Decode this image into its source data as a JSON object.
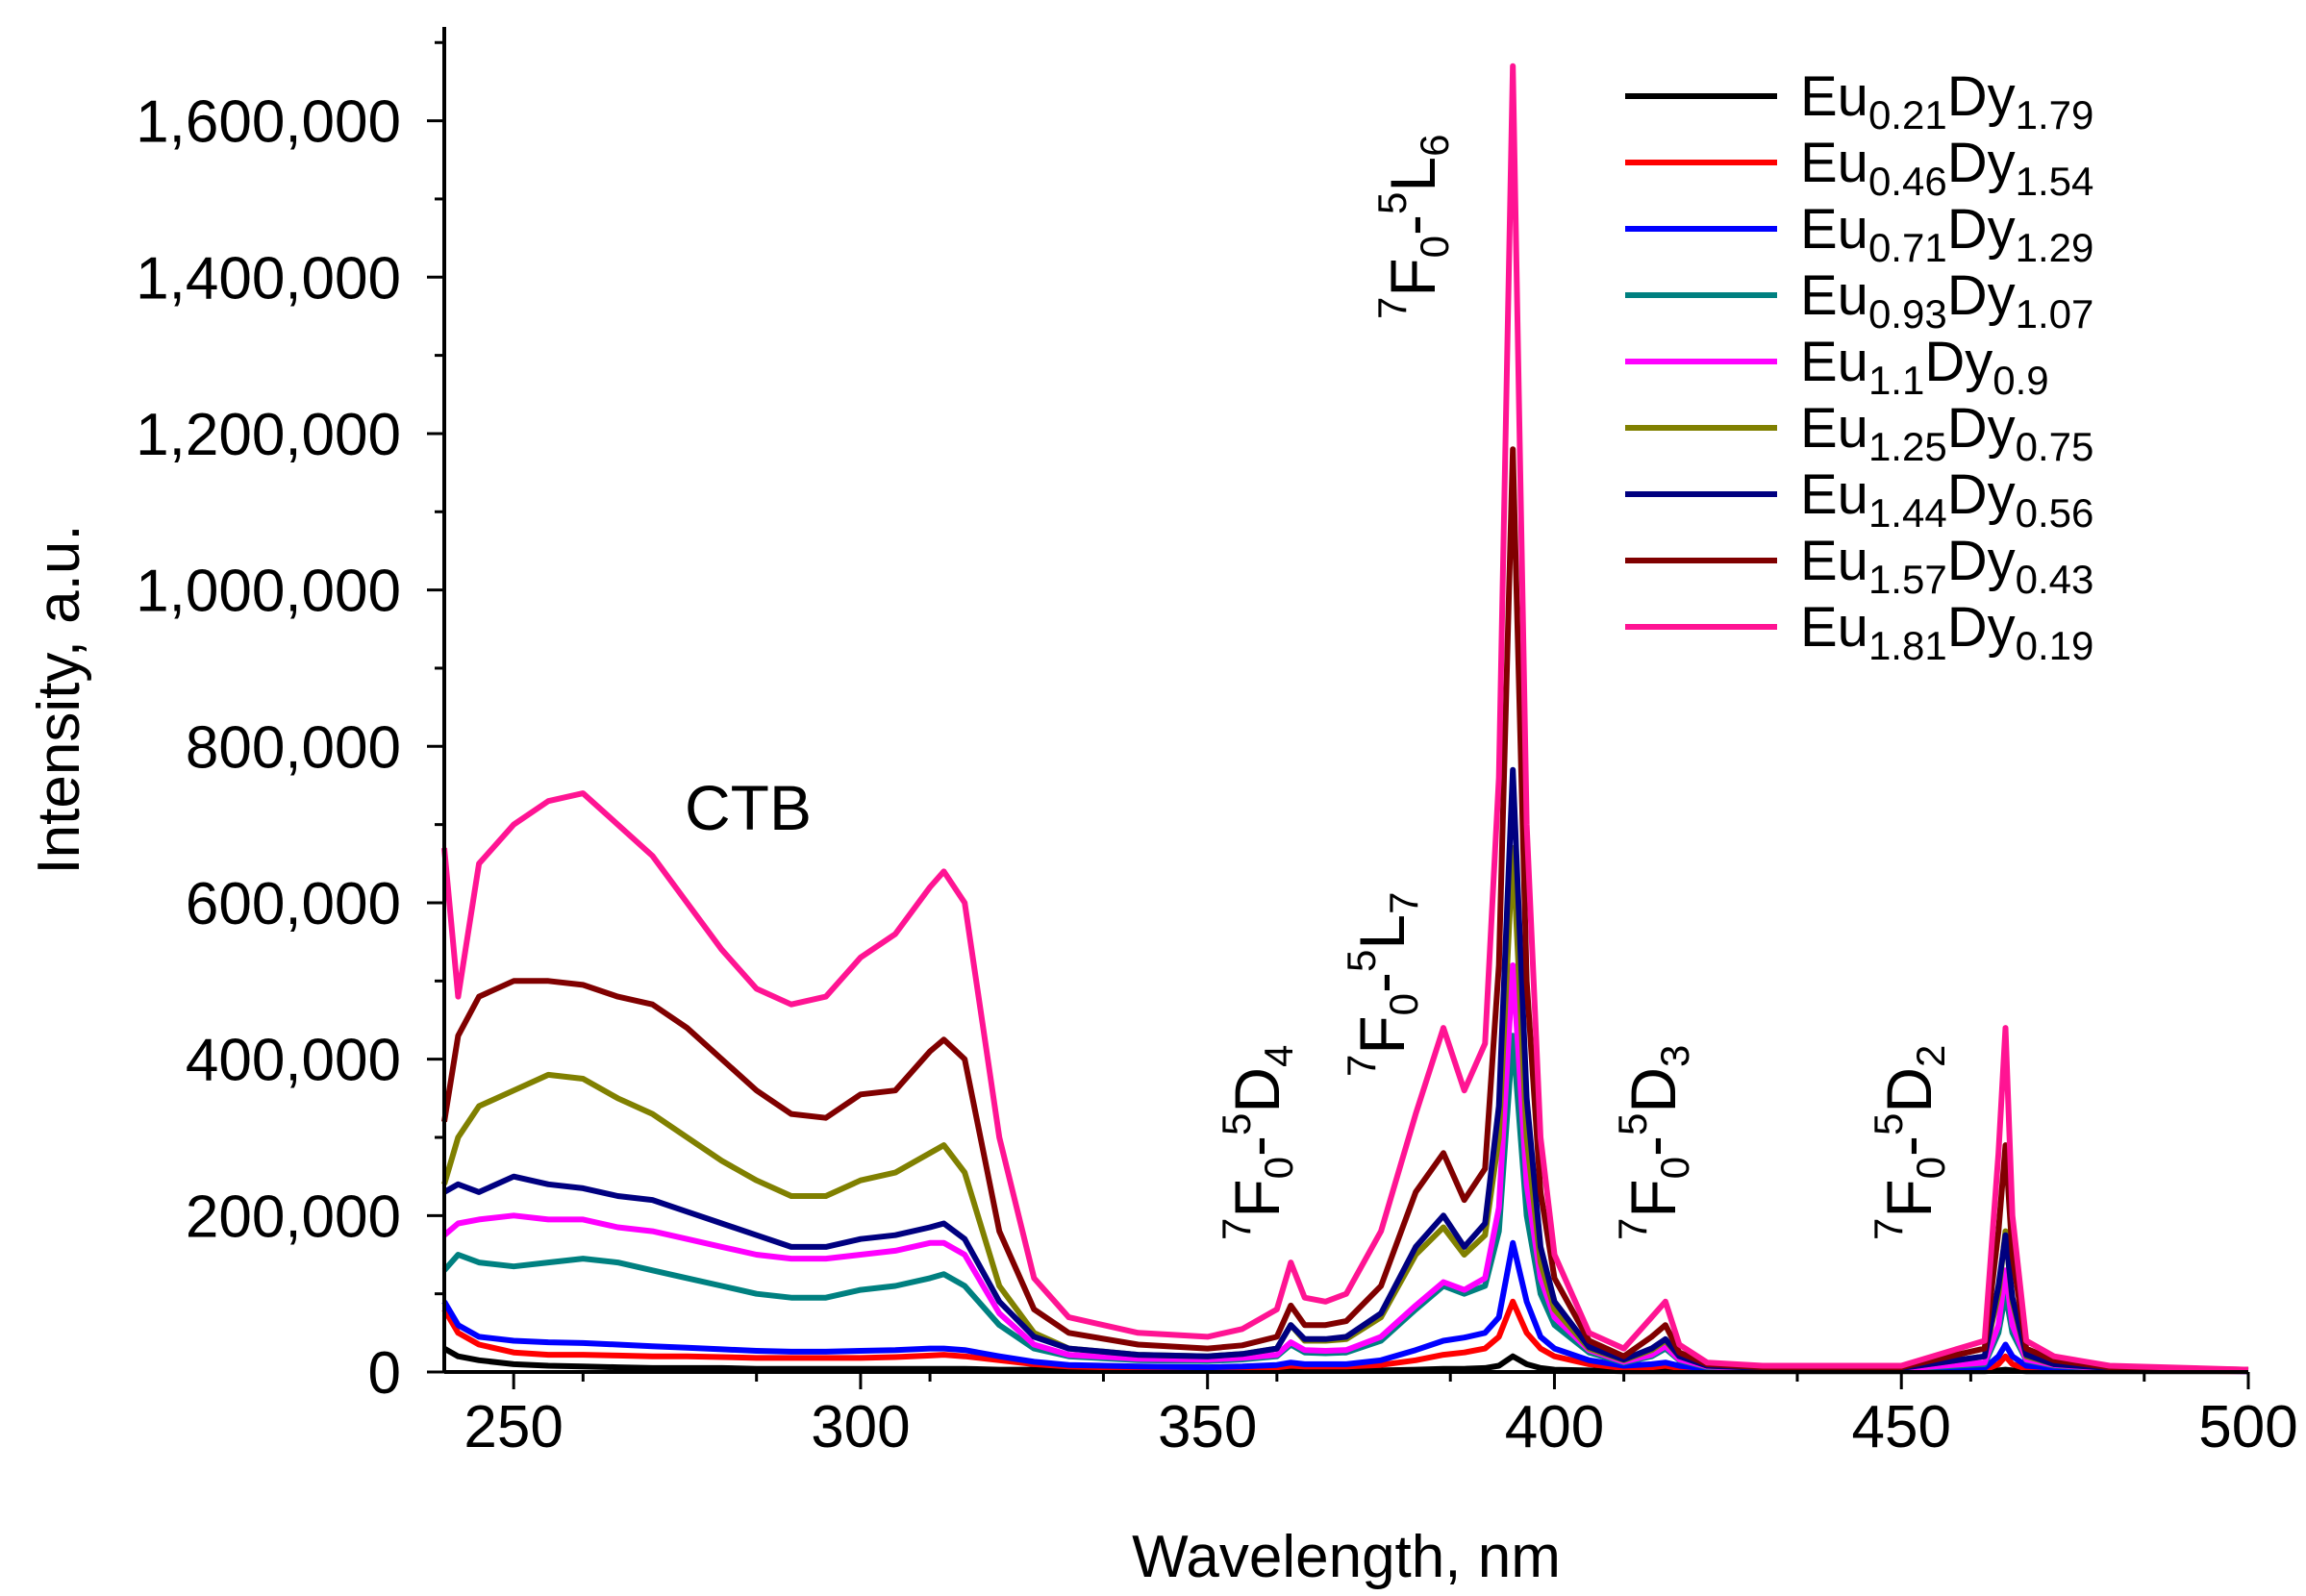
{
  "chart_data": {
    "type": "line",
    "title": "",
    "xlabel": "Wavelength, nm",
    "ylabel": "Intensity, a.u.",
    "xlim": [
      240,
      500
    ],
    "ylim": [
      0,
      1720000
    ],
    "xticks": [
      250,
      300,
      350,
      400,
      450,
      500
    ],
    "yticks": [
      0,
      200000,
      400000,
      600000,
      800000,
      1000000,
      1200000,
      1400000,
      1600000
    ],
    "xtick_labels": [
      "250",
      "300",
      "350",
      "400",
      "450",
      "500"
    ],
    "ytick_labels": [
      "0",
      "200,000",
      "400,000",
      "600,000",
      "800,000",
      "1,000,000",
      "1,200,000",
      "1,400,000",
      "1,600,000"
    ],
    "legend_position": "top-right",
    "annotations": [
      {
        "id": "ctb",
        "text": "CTB"
      },
      {
        "id": "l6",
        "pre": "7",
        "main1": "F",
        "sub1": "0",
        "mid": "-",
        "pre2": "5",
        "main2": "L",
        "sub2": "6"
      },
      {
        "id": "l7",
        "pre": "7",
        "main1": "F",
        "sub1": "0",
        "mid": "-",
        "pre2": "5",
        "main2": "L",
        "sub2": "7"
      },
      {
        "id": "d4",
        "pre": "7",
        "main1": "F",
        "sub1": "0",
        "mid": "-",
        "pre2": "5",
        "main2": "D",
        "sub2": "4"
      },
      {
        "id": "d3",
        "pre": "7",
        "main1": "F",
        "sub1": "0",
        "mid": "-",
        "pre2": "5",
        "main2": "D",
        "sub2": "3"
      },
      {
        "id": "d2",
        "pre": "7",
        "main1": "F",
        "sub1": "0",
        "mid": "-",
        "pre2": "5",
        "main2": "D",
        "sub2": "2"
      }
    ],
    "x": [
      240,
      242,
      245,
      250,
      255,
      260,
      265,
      270,
      275,
      280,
      285,
      290,
      295,
      300,
      305,
      310,
      312,
      315,
      320,
      325,
      330,
      340,
      350,
      355,
      360,
      362,
      364,
      367,
      370,
      375,
      380,
      384,
      387,
      390,
      392,
      394,
      396,
      398,
      400,
      405,
      410,
      414,
      416,
      418,
      422,
      430,
      450,
      462,
      464,
      465,
      466,
      468,
      472,
      480,
      500
    ],
    "series": [
      {
        "name": "Eu0.21Dy1.79",
        "label_main": "Eu",
        "label_sub1": "0.21",
        "label_mid": "Dy",
        "label_sub2": "1.79",
        "color": "#000000",
        "values": [
          30000,
          20000,
          15000,
          10000,
          8000,
          7000,
          6000,
          5000,
          5000,
          5000,
          4000,
          4000,
          4000,
          4000,
          4000,
          4000,
          4000,
          4000,
          3000,
          3000,
          2000,
          2000,
          2000,
          2000,
          2000,
          2000,
          2000,
          2000,
          2000,
          2000,
          3000,
          4000,
          4000,
          5000,
          8000,
          20000,
          10000,
          5000,
          3000,
          2000,
          1000,
          1000,
          1000,
          1000,
          1000,
          1000,
          1000,
          1000,
          2000,
          3000,
          2000,
          1000,
          1000,
          1000,
          1000
        ]
      },
      {
        "name": "Eu0.46Dy1.54",
        "label_main": "Eu",
        "label_sub1": "0.46",
        "label_mid": "Dy",
        "label_sub2": "1.54",
        "color": "#ff0000",
        "values": [
          80000,
          50000,
          35000,
          25000,
          22000,
          22000,
          21000,
          20000,
          20000,
          19000,
          18000,
          18000,
          18000,
          18000,
          19000,
          21000,
          22000,
          20000,
          15000,
          10000,
          7000,
          5000,
          5000,
          5000,
          6000,
          8000,
          7000,
          7000,
          7000,
          9000,
          15000,
          22000,
          25000,
          30000,
          45000,
          90000,
          50000,
          30000,
          20000,
          10000,
          5000,
          6000,
          8000,
          5000,
          3000,
          2000,
          2000,
          3000,
          10000,
          20000,
          10000,
          4000,
          3000,
          2000,
          1000
        ]
      },
      {
        "name": "Eu0.71Dy1.29",
        "label_main": "Eu",
        "label_sub1": "0.71",
        "label_mid": "Dy",
        "label_sub2": "1.29",
        "color": "#0000ff",
        "values": [
          90000,
          60000,
          45000,
          40000,
          38000,
          37000,
          35000,
          33000,
          31000,
          29000,
          27000,
          26000,
          26000,
          27000,
          28000,
          30000,
          30000,
          28000,
          20000,
          13000,
          9000,
          7000,
          6000,
          7000,
          9000,
          12000,
          10000,
          10000,
          10000,
          15000,
          28000,
          40000,
          44000,
          50000,
          70000,
          165000,
          90000,
          45000,
          30000,
          15000,
          8000,
          10000,
          12000,
          8000,
          4000,
          3000,
          3000,
          5000,
          20000,
          35000,
          20000,
          8000,
          5000,
          3000,
          1000
        ]
      },
      {
        "name": "Eu0.93Dy1.07",
        "label_main": "Eu",
        "label_sub1": "0.93",
        "label_mid": "Dy",
        "label_sub2": "1.07",
        "color": "#008080",
        "values": [
          130000,
          150000,
          140000,
          135000,
          140000,
          145000,
          140000,
          130000,
          120000,
          110000,
          100000,
          95000,
          95000,
          105000,
          110000,
          120000,
          125000,
          110000,
          60000,
          30000,
          20000,
          15000,
          14000,
          16000,
          20000,
          35000,
          25000,
          24000,
          25000,
          40000,
          80000,
          110000,
          100000,
          110000,
          180000,
          430000,
          200000,
          100000,
          60000,
          25000,
          12000,
          20000,
          30000,
          15000,
          6000,
          4000,
          4000,
          10000,
          50000,
          100000,
          50000,
          15000,
          8000,
          4000,
          2000
        ]
      },
      {
        "name": "Eu1.1Dy0.9",
        "label_main": "Eu",
        "label_sub1": "1.1",
        "label_mid": "Dy",
        "label_sub2": "0.9",
        "color": "#ff00ff",
        "values": [
          175000,
          190000,
          195000,
          200000,
          195000,
          195000,
          185000,
          180000,
          170000,
          160000,
          150000,
          145000,
          145000,
          150000,
          155000,
          165000,
          165000,
          150000,
          75000,
          35000,
          22000,
          17000,
          16000,
          18000,
          22000,
          38000,
          28000,
          27000,
          28000,
          45000,
          85000,
          115000,
          105000,
          120000,
          210000,
          520000,
          240000,
          120000,
          70000,
          28000,
          13000,
          22000,
          33000,
          16000,
          7000,
          4000,
          4000,
          12000,
          60000,
          130000,
          60000,
          16000,
          9000,
          4000,
          2000
        ]
      },
      {
        "name": "Eu1.25Dy0.75",
        "label_main": "Eu",
        "label_sub1": "1.25",
        "label_mid": "Dy",
        "label_sub2": "0.75",
        "color": "#808000",
        "values": [
          240000,
          300000,
          340000,
          360000,
          380000,
          375000,
          350000,
          330000,
          300000,
          270000,
          245000,
          225000,
          225000,
          245000,
          255000,
          280000,
          290000,
          255000,
          110000,
          50000,
          30000,
          22000,
          20000,
          23000,
          30000,
          60000,
          40000,
          40000,
          42000,
          70000,
          150000,
          185000,
          150000,
          175000,
          300000,
          670000,
          300000,
          140000,
          80000,
          30000,
          15000,
          28000,
          40000,
          20000,
          8000,
          5000,
          5000,
          20000,
          100000,
          180000,
          90000,
          20000,
          10000,
          5000,
          2000
        ]
      },
      {
        "name": "Eu1.44Dy0.56",
        "label_main": "Eu",
        "label_sub1": "1.44",
        "label_mid": "Dy",
        "label_sub2": "0.56",
        "color": "#000080",
        "values": [
          230000,
          240000,
          230000,
          250000,
          240000,
          235000,
          225000,
          220000,
          205000,
          190000,
          175000,
          160000,
          160000,
          170000,
          175000,
          185000,
          190000,
          170000,
          90000,
          45000,
          30000,
          22000,
          20000,
          23000,
          30000,
          60000,
          42000,
          42000,
          45000,
          75000,
          160000,
          200000,
          160000,
          190000,
          340000,
          770000,
          350000,
          160000,
          90000,
          32000,
          16000,
          30000,
          42000,
          20000,
          8000,
          5000,
          5000,
          20000,
          110000,
          175000,
          95000,
          22000,
          10000,
          5000,
          2000
        ]
      },
      {
        "name": "Eu1.57Dy0.43",
        "label_main": "Eu",
        "label_sub1": "1.57",
        "label_mid": "Dy",
        "label_sub2": "0.43",
        "color": "#800000",
        "values": [
          320000,
          430000,
          480000,
          500000,
          500000,
          495000,
          480000,
          470000,
          440000,
          400000,
          360000,
          330000,
          325000,
          355000,
          360000,
          410000,
          425000,
          400000,
          180000,
          80000,
          50000,
          35000,
          30000,
          34000,
          45000,
          85000,
          60000,
          60000,
          65000,
          110000,
          230000,
          280000,
          220000,
          260000,
          520000,
          1180000,
          500000,
          230000,
          120000,
          40000,
          20000,
          45000,
          60000,
          25000,
          10000,
          6000,
          6000,
          30000,
          180000,
          290000,
          150000,
          30000,
          15000,
          6000,
          3000
        ]
      },
      {
        "name": "Eu1.81Dy0.19",
        "label_main": "Eu",
        "label_sub1": "1.81",
        "label_mid": "Dy",
        "label_sub2": "0.19",
        "color": "#ff1493",
        "values": [
          670000,
          480000,
          650000,
          700000,
          730000,
          740000,
          700000,
          660000,
          600000,
          540000,
          490000,
          470000,
          480000,
          530000,
          560000,
          620000,
          640000,
          600000,
          300000,
          120000,
          70000,
          50000,
          45000,
          55000,
          80000,
          140000,
          95000,
          90000,
          100000,
          180000,
          330000,
          440000,
          360000,
          420000,
          760000,
          1670000,
          700000,
          300000,
          150000,
          50000,
          30000,
          70000,
          90000,
          35000,
          12000,
          8000,
          8000,
          40000,
          280000,
          440000,
          200000,
          40000,
          20000,
          8000,
          3000
        ]
      }
    ]
  }
}
